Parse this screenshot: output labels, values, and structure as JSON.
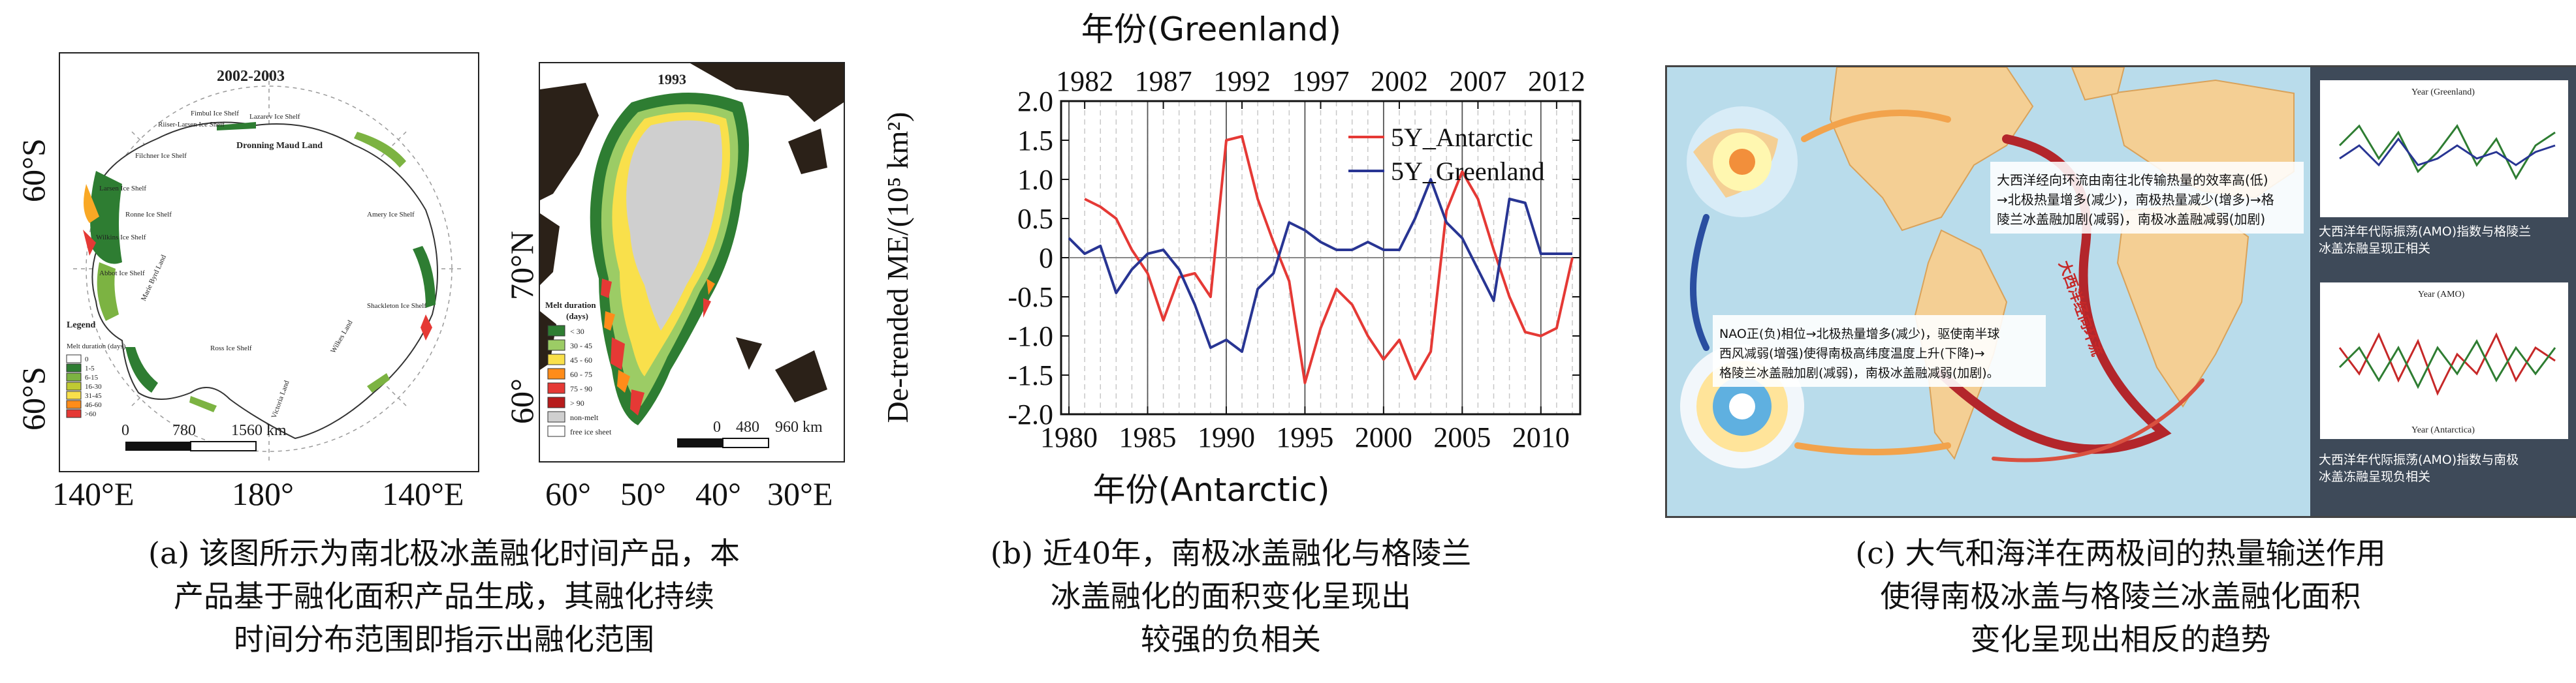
{
  "panel_a": {
    "antarctic_map": {
      "title": "2002-2003",
      "place_names": [
        "Riiser-Larsen Ice Shelf",
        "Fimbul Ice Shelf",
        "Lazarev Ice Shelf",
        "Dronning Maud Land",
        "Amery Ice Shelf",
        "Shackleton Ice Shelf",
        "Wilkes Land",
        "Victoria Land",
        "Ross Ice Shelf",
        "Marie Byrd Land",
        "Abbot Ice Shelf",
        "Wilkins Ice Shelf",
        "Larsen Ice Shelf",
        "Ronne Ice Shelf",
        "Filchner Ice Shelf"
      ],
      "legend_title": "Legend",
      "legend_sub": "Melt duration (days)",
      "legend_items": [
        "0",
        "1-5",
        "6-15",
        "16-30",
        "31-45",
        "46-60",
        ">60"
      ],
      "scale_labels": [
        "0",
        "780",
        "1560 km"
      ],
      "left_lat_top": "60°S",
      "left_lat_bottom": "60°S",
      "bottom_lon": [
        "140°E",
        "180°",
        "140°E"
      ]
    },
    "greenland_map": {
      "title": "1993",
      "legend_title": "Melt duration",
      "legend_unit": "(days)",
      "legend_items": [
        "< 30",
        "30 - 45",
        "45 - 60",
        "60 - 75",
        "75 - 90",
        "> 90",
        "non-melt",
        "free ice sheet"
      ],
      "scale_labels": [
        "0",
        "480",
        "960 km"
      ],
      "left_lat_top": "70°N",
      "left_lat_bottom": "60°",
      "bottom_lon": [
        "60°",
        "50°",
        "40°",
        "30°E"
      ]
    },
    "caption": [
      "(a) 该图所示为南北极冰盖融化时间产品，本",
      "产品基于融化面积产品生成，其融化持续",
      "时间分布范围即指示出融化范围"
    ]
  },
  "panel_b": {
    "caption": [
      "(b) 近40年，南极冰盖融化与格陵兰",
      "冰盖融化的面积变化呈现出",
      "较强的负相关"
    ]
  },
  "panel_c": {
    "box1_text": [
      "大西洋经向环流由南往北传输热量的效率高(低)",
      "→北极热量增多(减少)，南极热量减少(增多)→格",
      "陵兰冰盖融加剧(减弱)，南极冰盖融减弱(加剧)"
    ],
    "box2_text": [
      "NAO正(负)相位→北极热量增多(减少)，驱使南半球",
      "西风减弱(增强)使得南极高纬度温度上升(下降)→",
      "格陵兰冰盖融加剧(减弱)，南极冰盖融减弱(加剧)。"
    ],
    "current_label": "大西洋经向环流",
    "right_top_year_label": "Year (Greenland)",
    "right_top_caption": [
      "大西洋年代际振荡(AMO)指数与格陵兰",
      "冰盖冻融呈现正相关"
    ],
    "right_mid_year_label": "Year (AMO)",
    "right_bottom_year_label": "Year (Antarctica)",
    "right_bottom_caption": [
      "大西洋年代际振荡(AMO)指数与南极",
      "冰盖冻融呈现负相关"
    ],
    "caption": [
      "(c) 大气和海洋在两极间的热量输送作用",
      "使得南极冰盖与格陵兰冰盖融化面积",
      "变化呈现出相反的趋势"
    ]
  },
  "chart_data": {
    "type": "line",
    "title": "",
    "top_axis_label": "年份(Greenland)",
    "xlabel": "年份(Antarctic)",
    "ylabel": "De-trended ME/(10⁵ km²)",
    "ylim": [
      -2.0,
      2.0
    ],
    "yticks": [
      "-2.0",
      "-1.5",
      "-1.0",
      "-0.5",
      "0",
      "0.5",
      "1.0",
      "1.5",
      "2.0"
    ],
    "bottom_xlim": [
      1979.5,
      2012.5
    ],
    "bottom_xticks": [
      "1980",
      "1985",
      "1990",
      "1995",
      "2000",
      "2005",
      "2010"
    ],
    "top_xlim": [
      1980.5,
      2013.5
    ],
    "top_xticks": [
      "1982",
      "1987",
      "1992",
      "1997",
      "2002",
      "2007",
      "2012"
    ],
    "legend_placement": "top-right",
    "series": [
      {
        "name": "5Y_Antarctic",
        "color": "#e53935",
        "axis": "bottom",
        "x": [
          1981,
          1982,
          1983,
          1984,
          1985,
          1986,
          1987,
          1988,
          1989,
          1990,
          1991,
          1992,
          1993,
          1994,
          1995,
          1996,
          1997,
          1998,
          1999,
          2000,
          2001,
          2002,
          2003,
          2004,
          2005,
          2006,
          2007,
          2008,
          2009,
          2010,
          2011,
          2012
        ],
        "y": [
          0.75,
          0.65,
          0.5,
          0.1,
          -0.2,
          -0.8,
          -0.25,
          -0.2,
          -0.5,
          1.5,
          1.55,
          0.75,
          0.2,
          -0.3,
          -1.6,
          -0.9,
          -0.4,
          -0.6,
          -1.0,
          -1.3,
          -1.05,
          -1.55,
          -1.2,
          0.6,
          1.1,
          0.75,
          0.1,
          -0.5,
          -0.95,
          -1.0,
          -0.9,
          0.0
        ]
      },
      {
        "name": "5Y_Greenland",
        "color": "#283593",
        "axis": "top",
        "x": [
          1981,
          1982,
          1983,
          1984,
          1985,
          1986,
          1987,
          1988,
          1989,
          1990,
          1991,
          1992,
          1993,
          1994,
          1995,
          1996,
          1997,
          1998,
          1999,
          2000,
          2001,
          2002,
          2003,
          2004,
          2005,
          2006,
          2007,
          2008,
          2009,
          2010,
          2011,
          2012,
          2013
        ],
        "y": [
          0.25,
          0.05,
          0.15,
          -0.45,
          -0.15,
          0.05,
          0.1,
          -0.15,
          -0.6,
          -1.15,
          -1.05,
          -1.2,
          -0.4,
          -0.2,
          0.45,
          0.35,
          0.2,
          0.1,
          0.1,
          0.2,
          0.1,
          0.1,
          0.5,
          1.0,
          0.45,
          0.25,
          -0.15,
          -0.55,
          0.75,
          0.7,
          0.05,
          0.05,
          0.05
        ]
      }
    ]
  }
}
